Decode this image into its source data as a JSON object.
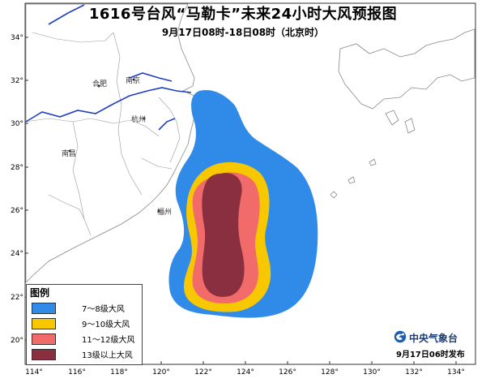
{
  "title": "1616号台风“马勒卡”未来24小时大风预报图",
  "subtitle": "9月17日08时-18日08时（北京时）",
  "map": {
    "lat_labels": [
      "34°",
      "32°",
      "30°",
      "28°",
      "26°",
      "24°",
      "22°",
      "20°"
    ],
    "lon_labels": [
      "114°",
      "116°",
      "118°",
      "120°",
      "122°",
      "124°",
      "126°",
      "128°",
      "130°",
      "132°",
      "134°"
    ],
    "cities": [
      {
        "name": "南京"
      },
      {
        "name": "合肥"
      },
      {
        "name": "杭州"
      },
      {
        "name": "南昌"
      },
      {
        "name": "福州"
      }
    ],
    "boundary_color": "#1f3fbf",
    "land_outline_color": "#888888"
  },
  "legend": {
    "title": "图例",
    "items": [
      {
        "label": "7～8级大风",
        "color": "#2f8ae8"
      },
      {
        "label": "9～10级大风",
        "color": "#f7c700"
      },
      {
        "label": "11～12级大风",
        "color": "#f26b6b"
      },
      {
        "label": "13级以上大风",
        "color": "#8a2f3f"
      }
    ]
  },
  "footer": {
    "org_name": "中央气象台",
    "org_icon": "cma-logo-icon",
    "issue_time": "9月17日06时发布"
  }
}
